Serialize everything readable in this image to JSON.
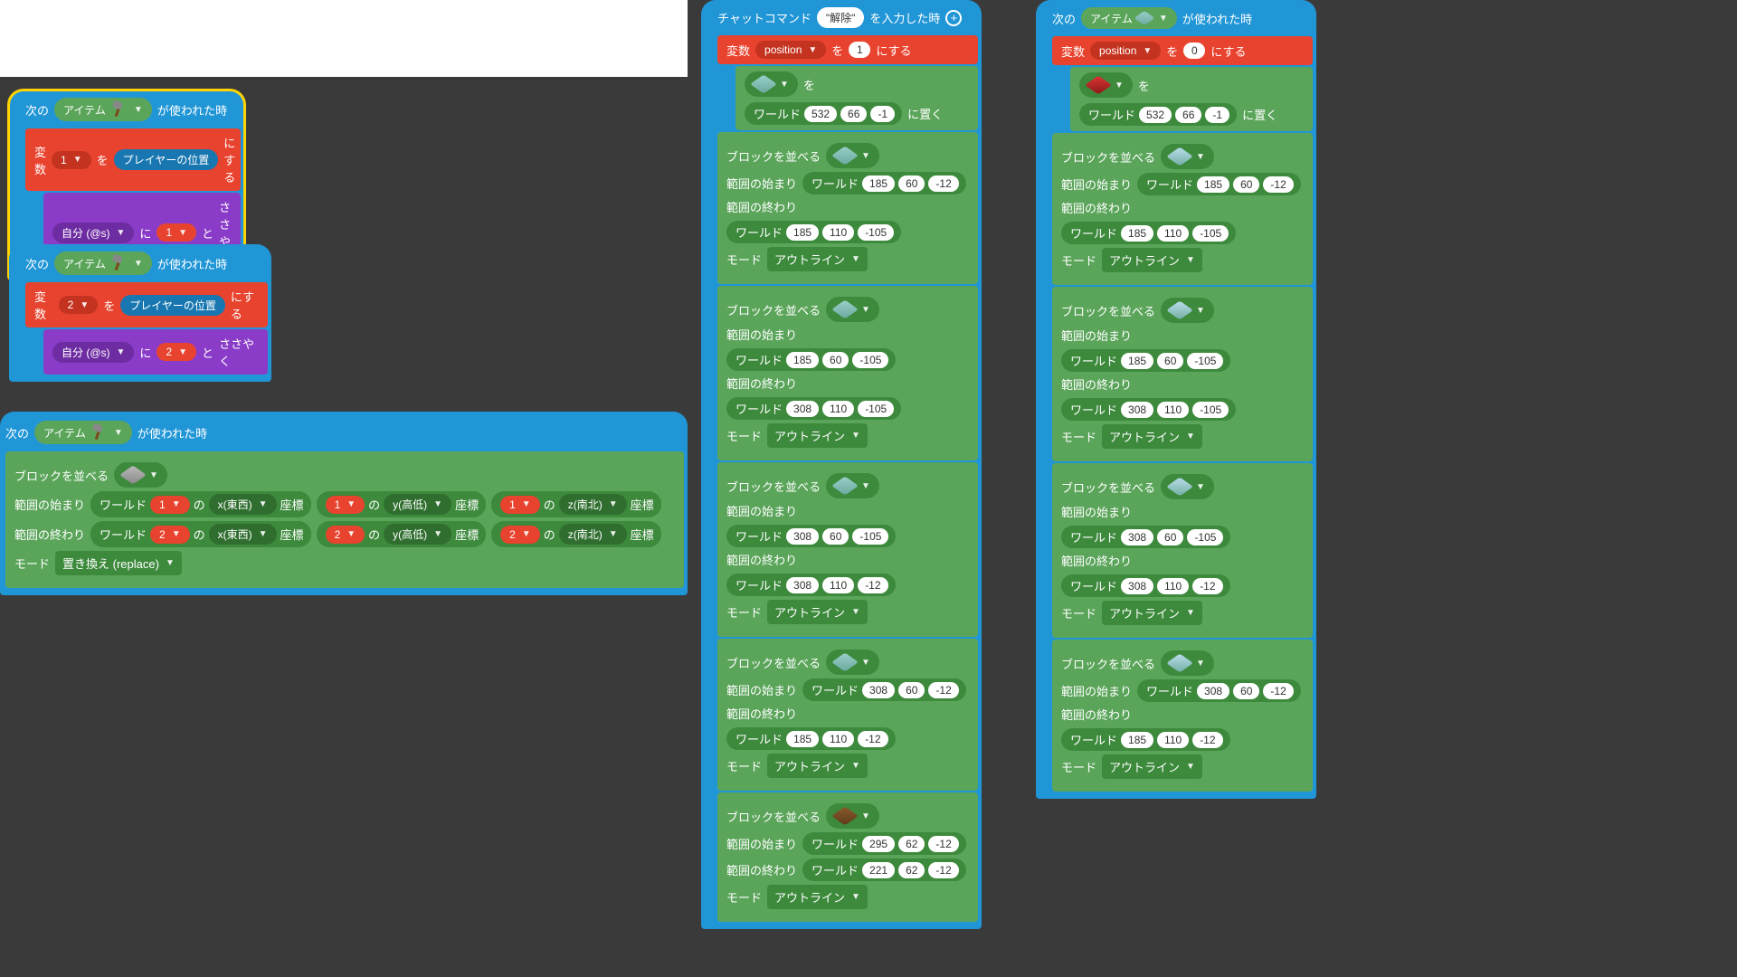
{
  "colors": {
    "bg": "#3a3a3a",
    "blue": "#2196d6",
    "red": "#e8432e",
    "green": "#5ba55b",
    "dgreen": "#3d8a3d",
    "purple": "#8a3cc9",
    "white": "#ffffff",
    "yellow": "#ffd400"
  },
  "txt": {
    "next": "次の",
    "item": "アイテム",
    "used": "が使われた時",
    "var": "変数",
    "set_to": "を",
    "to_val": "にする",
    "player_pos": "プレイヤーの位置",
    "self": "自分 (@s)",
    "to": "に",
    "and": "と",
    "whisper": "ささやく",
    "chat_cmd": "チャットコマンド",
    "on_input": "を入力した時",
    "cmd_name": "\"解除\"",
    "position": "position",
    "place_at": "に置く",
    "world": "ワールド",
    "fill": "ブロックを並べる",
    "range_start": "範囲の始まり",
    "range_end": "範囲の終わり",
    "mode": "モード",
    "outline": "アウトライン",
    "replace": "置き換え (replace)",
    "of": "の",
    "coord": "座標",
    "x_ew": "x(東西)",
    "y_hl": "y(高低)",
    "z_ns": "z(南北)"
  },
  "leftA": {
    "varNum": "1",
    "whisperNum": "1"
  },
  "leftB": {
    "varNum": "2",
    "whisperNum": "2"
  },
  "leftC": {
    "row1_var": "1",
    "row1_sel1": "1",
    "row1_sel2": "1",
    "row1_sel3": "1",
    "row2_var": "2",
    "row2_sel1": "2",
    "row2_sel2": "2",
    "row2_sel3": "2"
  },
  "col2": {
    "pos_val": "1",
    "place": {
      "x": "532",
      "y": "66",
      "z": "-1"
    },
    "fills": [
      {
        "s": [
          "185",
          "60",
          "-12"
        ],
        "e": [
          "185",
          "110",
          "-105"
        ],
        "mode": "outline",
        "cube": "teal"
      },
      {
        "s": [
          "185",
          "60",
          "-105"
        ],
        "e": [
          "308",
          "110",
          "-105"
        ],
        "mode": "outline",
        "cube": "teal"
      },
      {
        "s": [
          "308",
          "60",
          "-105"
        ],
        "e": [
          "308",
          "110",
          "-12"
        ],
        "mode": "outline",
        "cube": "teal"
      },
      {
        "s": [
          "308",
          "60",
          "-12"
        ],
        "e": [
          "185",
          "110",
          "-12"
        ],
        "mode": "outline",
        "cube": "teal"
      },
      {
        "s": [
          "295",
          "62",
          "-12"
        ],
        "e": [
          "221",
          "62",
          "-12"
        ],
        "mode": "outline",
        "cube": "dirt"
      }
    ]
  },
  "col3": {
    "pos_val": "0",
    "place": {
      "x": "532",
      "y": "66",
      "z": "-1"
    },
    "fills": [
      {
        "s": [
          "185",
          "60",
          "-12"
        ],
        "e": [
          "185",
          "110",
          "-105"
        ],
        "mode": "outline",
        "cube": "glass"
      },
      {
        "s": [
          "185",
          "60",
          "-105"
        ],
        "e": [
          "308",
          "110",
          "-105"
        ],
        "mode": "outline",
        "cube": "glass"
      },
      {
        "s": [
          "308",
          "60",
          "-105"
        ],
        "e": [
          "308",
          "110",
          "-12"
        ],
        "mode": "outline",
        "cube": "glass"
      },
      {
        "s": [
          "308",
          "60",
          "-12"
        ],
        "e": [
          "185",
          "110",
          "-12"
        ],
        "mode": "outline",
        "cube": "glass"
      }
    ]
  }
}
